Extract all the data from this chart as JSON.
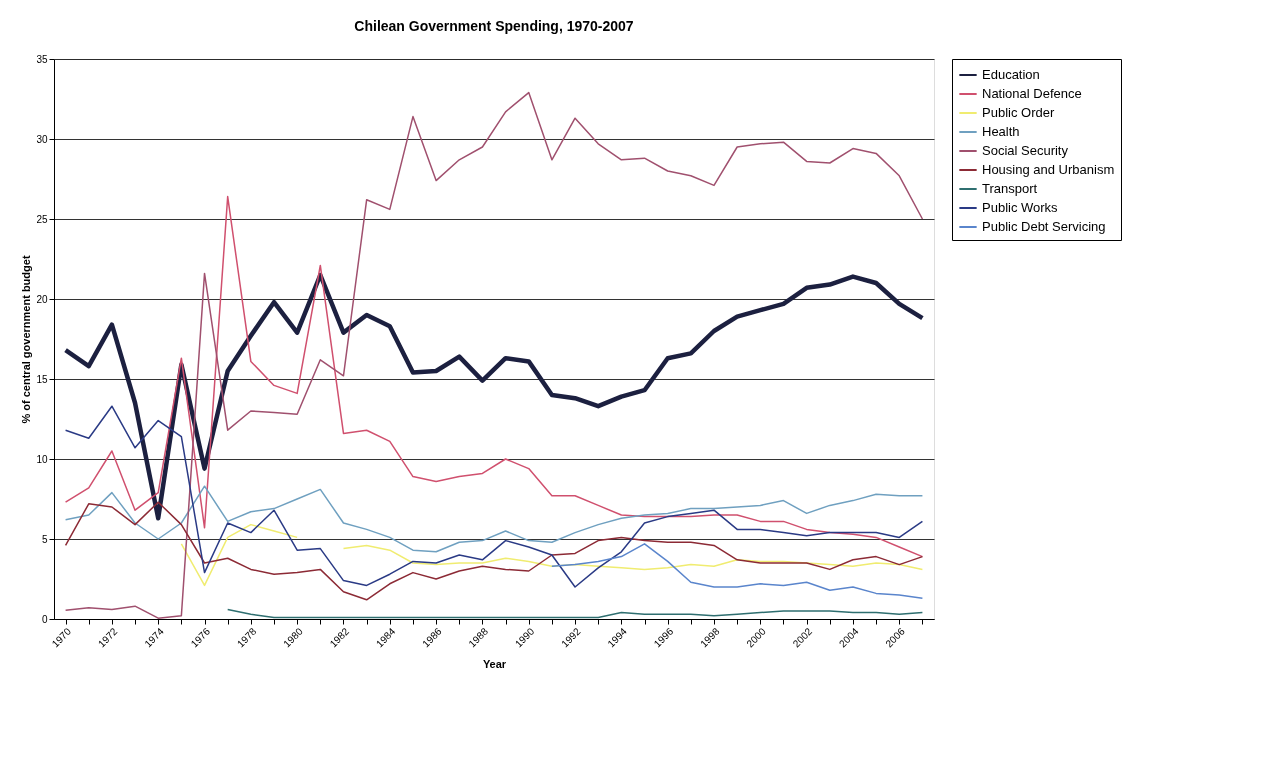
{
  "chart_data": {
    "type": "line",
    "title": "Chilean Government Spending, 1970-2007",
    "xlabel": "Year",
    "ylabel": "% of central government budget",
    "x": [
      1970,
      1971,
      1972,
      1973,
      1974,
      1975,
      1976,
      1977,
      1978,
      1979,
      1980,
      1981,
      1982,
      1983,
      1984,
      1985,
      1986,
      1987,
      1988,
      1989,
      1990,
      1991,
      1992,
      1993,
      1994,
      1995,
      1996,
      1997,
      1998,
      1999,
      2000,
      2001,
      2002,
      2003,
      2004,
      2005,
      2006,
      2007
    ],
    "xlim": [
      1969.5,
      2007.5
    ],
    "xticks": [
      1970,
      {
        "value": 1971,
        "label": null
      },
      1972,
      {
        "value": 1973,
        "label": null
      },
      1974,
      {
        "value": 1975,
        "label": null
      },
      1976,
      {
        "value": 1977,
        "label": null
      },
      1978,
      {
        "value": 1979,
        "label": null
      },
      1980,
      {
        "value": 1981,
        "label": null
      },
      1982,
      {
        "value": 1983,
        "label": null
      },
      1984,
      {
        "value": 1985,
        "label": null
      },
      1986,
      {
        "value": 1987,
        "label": null
      },
      1988,
      {
        "value": 1989,
        "label": null
      },
      1990,
      {
        "value": 1991,
        "label": null
      },
      1992,
      {
        "value": 1993,
        "label": null
      },
      1994,
      {
        "value": 1995,
        "label": null
      },
      1996,
      {
        "value": 1997,
        "label": null
      },
      1998,
      {
        "value": 1999,
        "label": null
      },
      2000,
      {
        "value": 2001,
        "label": null
      },
      2002,
      {
        "value": 2003,
        "label": null
      },
      2004,
      {
        "value": 2005,
        "label": null
      },
      2006,
      {
        "value": 2007,
        "label": null
      }
    ],
    "ylim": [
      0,
      35
    ],
    "yticks": [
      0,
      5,
      10,
      15,
      20,
      25,
      30,
      35
    ],
    "grid": "y",
    "legend": "right",
    "marker": "none",
    "line_style": "solid",
    "series": [
      {
        "name": "Education",
        "color": "#1c2040",
        "values": [
          16.8,
          15.8,
          18.4,
          13.5,
          6.3,
          15.9,
          9.4,
          15.5,
          17.7,
          19.8,
          17.9,
          21.5,
          17.9,
          19.0,
          18.3,
          15.4,
          15.5,
          16.4,
          14.9,
          16.3,
          16.1,
          14.0,
          13.8,
          13.3,
          13.9,
          14.3,
          16.3,
          16.6,
          18.0,
          18.9,
          19.3,
          19.7,
          20.7,
          20.9,
          21.4,
          21.0,
          19.7,
          18.8
        ]
      },
      {
        "name": "National Defence",
        "color": "#d0506e",
        "values": [
          7.3,
          8.2,
          10.5,
          6.8,
          7.9,
          16.3,
          5.7,
          26.4,
          16.1,
          14.6,
          14.1,
          22.1,
          11.6,
          11.8,
          11.1,
          8.9,
          8.6,
          8.9,
          9.1,
          10.0,
          9.4,
          7.7,
          7.7,
          7.1,
          6.5,
          6.4,
          6.4,
          6.4,
          6.5,
          6.5,
          6.1,
          6.1,
          5.6,
          5.4,
          5.3,
          5.1,
          4.5,
          3.9
        ]
      },
      {
        "name": "Public Order",
        "color": "#f0ec70",
        "values": [
          null,
          null,
          null,
          null,
          null,
          4.7,
          2.1,
          5.1,
          5.9,
          5.5,
          5.1,
          null,
          4.4,
          4.6,
          4.3,
          3.5,
          3.4,
          3.5,
          3.5,
          3.8,
          3.6,
          3.3,
          3.4,
          3.3,
          3.2,
          3.1,
          3.2,
          3.4,
          3.3,
          3.7,
          3.6,
          3.6,
          3.5,
          3.4,
          3.3,
          3.5,
          3.4,
          3.1
        ]
      },
      {
        "name": "Health",
        "color": "#6fa0c0",
        "values": [
          6.2,
          6.5,
          7.9,
          6.0,
          5.0,
          6.0,
          8.3,
          6.1,
          6.7,
          6.9,
          7.5,
          8.1,
          6.0,
          5.6,
          5.1,
          4.3,
          4.2,
          4.8,
          4.9,
          5.5,
          4.9,
          4.8,
          5.4,
          5.9,
          6.3,
          6.5,
          6.6,
          6.9,
          6.9,
          7.0,
          7.1,
          7.4,
          6.6,
          7.1,
          7.4,
          7.8,
          7.7,
          7.7
        ]
      },
      {
        "name": "Social Security",
        "color": "#a0506e",
        "values": [
          0.55,
          0.7,
          0.6,
          0.8,
          0.05,
          0.2,
          21.6,
          11.8,
          13.0,
          12.9,
          12.8,
          16.2,
          15.2,
          26.2,
          25.6,
          31.4,
          27.4,
          28.7,
          29.5,
          31.7,
          32.9,
          28.7,
          31.3,
          29.7,
          28.7,
          28.8,
          28.0,
          27.7,
          27.1,
          29.5,
          29.7,
          29.8,
          28.6,
          28.5,
          29.4,
          29.1,
          27.7,
          25.0
        ]
      },
      {
        "name": "Housing and Urbanism",
        "color": "#8c2a35",
        "values": [
          4.6,
          7.2,
          7.0,
          5.9,
          7.3,
          5.9,
          3.5,
          3.8,
          3.1,
          2.8,
          2.9,
          3.1,
          1.7,
          1.2,
          2.2,
          2.9,
          2.5,
          3.0,
          3.3,
          3.1,
          3.0,
          4.0,
          4.1,
          4.9,
          5.1,
          4.9,
          4.8,
          4.8,
          4.6,
          3.7,
          3.5,
          3.5,
          3.5,
          3.1,
          3.7,
          3.9,
          3.4,
          3.9
        ]
      },
      {
        "name": "Transport",
        "color": "#2f6f70",
        "values": [
          null,
          null,
          null,
          null,
          null,
          null,
          null,
          0.6,
          0.3,
          0.1,
          0.1,
          0.1,
          0.1,
          0.1,
          0.1,
          0.1,
          0.1,
          0.1,
          0.1,
          0.1,
          0.1,
          0.1,
          0.1,
          0.1,
          0.4,
          0.3,
          0.3,
          0.3,
          0.2,
          0.3,
          0.4,
          0.5,
          0.5,
          0.5,
          0.4,
          0.4,
          0.3,
          0.4
        ]
      },
      {
        "name": "Public Works",
        "color": "#2a3a85",
        "values": [
          11.8,
          11.3,
          13.3,
          10.7,
          12.4,
          11.4,
          2.9,
          6.0,
          5.4,
          6.8,
          4.3,
          4.4,
          2.4,
          2.1,
          2.8,
          3.6,
          3.5,
          4.0,
          3.7,
          4.9,
          4.5,
          4.0,
          2.0,
          3.2,
          4.2,
          6.0,
          6.4,
          6.6,
          6.8,
          5.6,
          5.6,
          5.4,
          5.2,
          5.4,
          5.4,
          5.4,
          5.1,
          6.1
        ]
      },
      {
        "name": "Public Debt Servicing",
        "color": "#5a85cc",
        "values": [
          null,
          null,
          null,
          null,
          null,
          null,
          null,
          null,
          null,
          null,
          null,
          null,
          null,
          null,
          null,
          null,
          null,
          null,
          null,
          null,
          null,
          3.3,
          3.4,
          3.6,
          3.9,
          4.7,
          3.6,
          2.3,
          2.0,
          2.0,
          2.2,
          2.1,
          2.3,
          1.8,
          2.0,
          1.6,
          1.5,
          1.3
        ]
      }
    ]
  }
}
